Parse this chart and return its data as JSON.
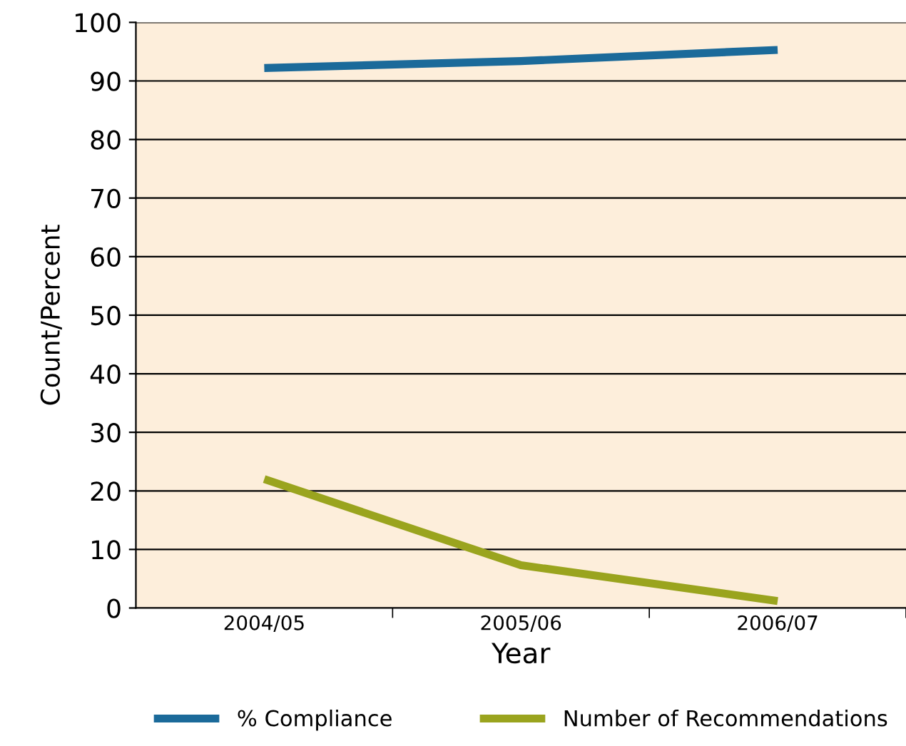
{
  "chart_data": {
    "type": "line",
    "xlabel": "Year",
    "ylabel": "Count/Percent",
    "categories": [
      "2004/05",
      "2005/06",
      "2006/07"
    ],
    "series": [
      {
        "name": "% Compliance",
        "color": "#1b6a9a",
        "values": [
          92.2,
          93.4,
          95.3
        ]
      },
      {
        "name": "Number of Recommendations",
        "color": "#9aa41e",
        "values": [
          22.0,
          7.3,
          1.2
        ]
      }
    ],
    "ylim": [
      0,
      100
    ],
    "yticks": [
      0,
      10,
      20,
      30,
      40,
      50,
      60,
      70,
      80,
      90,
      100
    ],
    "grid": "y",
    "legend": "bottom",
    "marker": "none",
    "line_style": "solid"
  }
}
